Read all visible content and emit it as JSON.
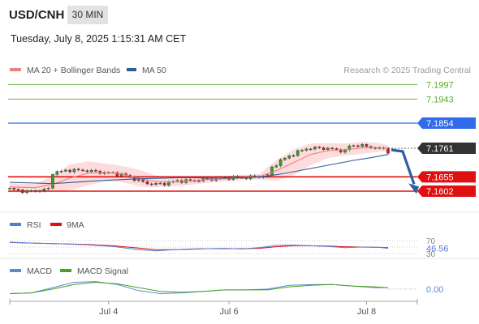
{
  "header": {
    "pair": "USD/CNH",
    "timeframe": "30 MIN",
    "datetime": "Tuesday, July 8, 2025 1:15:31 AM CET",
    "credit": "Research © 2025 Trading Central"
  },
  "colors": {
    "ma20": "#f08080",
    "ma50": "#2f5f99",
    "bands_fill": "#fcdcdc",
    "resistance": "#5aaa2a",
    "pivot": "#2f6bea",
    "support": "#e01010",
    "rsi": "#5b79d6",
    "rsi_ma": "#e01010",
    "macd": "#5b8ad6",
    "macd_signal": "#4aa020",
    "arrow": "#2a5fa8",
    "candle_up": "#2e9e2e",
    "candle_down": "#cc2222"
  },
  "chart_data": [
    {
      "type": "candlestick",
      "name": "price",
      "legend": [
        {
          "label": "MA 20 + Bollinger Bands",
          "color": "#f08080"
        },
        {
          "label": "MA 50",
          "color": "#2f5f99"
        }
      ],
      "last_price": 7.1761,
      "ylim": [
        7.159,
        7.201
      ],
      "levels": [
        {
          "label": "7.1997",
          "value": 7.1997,
          "kind": "resistance"
        },
        {
          "label": "7.1943",
          "value": 7.1943,
          "kind": "resistance"
        },
        {
          "label": "7.1854",
          "value": 7.1854,
          "kind": "pivot"
        },
        {
          "label": "7.1655",
          "value": 7.1655,
          "kind": "support"
        },
        {
          "label": "7.1602",
          "value": 7.1602,
          "kind": "support"
        }
      ],
      "forecast_arrow": {
        "from": 7.1755,
        "to": 7.1604
      },
      "close_path": [
        [
          0,
          7.161
        ],
        [
          4,
          7.16
        ],
        [
          9,
          7.161
        ],
        [
          10,
          7.167
        ],
        [
          14,
          7.168
        ],
        [
          18,
          7.1678
        ],
        [
          21,
          7.1672
        ],
        [
          24,
          7.1668
        ],
        [
          27,
          7.166
        ],
        [
          30,
          7.164
        ],
        [
          33,
          7.1628
        ],
        [
          36,
          7.163
        ],
        [
          39,
          7.164
        ],
        [
          42,
          7.164
        ],
        [
          45,
          7.1645
        ],
        [
          48,
          7.1648
        ],
        [
          51,
          7.1652
        ],
        [
          54,
          7.1652
        ],
        [
          57,
          7.1655
        ],
        [
          60,
          7.166
        ],
        [
          61,
          7.169
        ],
        [
          63,
          7.1715
        ],
        [
          66,
          7.174
        ],
        [
          69,
          7.176
        ],
        [
          72,
          7.1762
        ],
        [
          75,
          7.1758
        ],
        [
          78,
          7.175
        ],
        [
          79,
          7.177
        ],
        [
          81,
          7.1772
        ],
        [
          84,
          7.1765
        ],
        [
          86,
          7.176
        ],
        [
          87,
          7.176
        ],
        [
          88,
          7.1748
        ]
      ],
      "ma20": [
        [
          0,
          7.1618
        ],
        [
          6,
          7.1615
        ],
        [
          10,
          7.1628
        ],
        [
          14,
          7.165
        ],
        [
          18,
          7.1668
        ],
        [
          22,
          7.1672
        ],
        [
          26,
          7.1666
        ],
        [
          30,
          7.165
        ],
        [
          34,
          7.1638
        ],
        [
          38,
          7.1636
        ],
        [
          42,
          7.164
        ],
        [
          46,
          7.1645
        ],
        [
          50,
          7.1648
        ],
        [
          54,
          7.1652
        ],
        [
          58,
          7.1655
        ],
        [
          62,
          7.1678
        ],
        [
          66,
          7.1708
        ],
        [
          70,
          7.1738
        ],
        [
          74,
          7.1752
        ],
        [
          78,
          7.1756
        ],
        [
          82,
          7.1762
        ],
        [
          86,
          7.1764
        ],
        [
          88,
          7.176
        ]
      ],
      "ma50": [
        [
          0,
          7.1635
        ],
        [
          10,
          7.163
        ],
        [
          20,
          7.164
        ],
        [
          30,
          7.1648
        ],
        [
          40,
          7.1652
        ],
        [
          50,
          7.165
        ],
        [
          56,
          7.1652
        ],
        [
          60,
          7.1658
        ],
        [
          64,
          7.1668
        ],
        [
          68,
          7.168
        ],
        [
          72,
          7.1692
        ],
        [
          76,
          7.1704
        ],
        [
          80,
          7.1716
        ],
        [
          84,
          7.1726
        ],
        [
          88,
          7.1738
        ]
      ],
      "bb_upper": [
        [
          0,
          7.1632
        ],
        [
          6,
          7.1628
        ],
        [
          10,
          7.166
        ],
        [
          14,
          7.17
        ],
        [
          18,
          7.1712
        ],
        [
          22,
          7.1705
        ],
        [
          26,
          7.1696
        ],
        [
          30,
          7.1682
        ],
        [
          34,
          7.166
        ],
        [
          38,
          7.1652
        ],
        [
          42,
          7.1655
        ],
        [
          46,
          7.1657
        ],
        [
          50,
          7.1659
        ],
        [
          54,
          7.1661
        ],
        [
          58,
          7.1665
        ],
        [
          62,
          7.1716
        ],
        [
          66,
          7.1756
        ],
        [
          70,
          7.1778
        ],
        [
          74,
          7.178
        ],
        [
          78,
          7.1778
        ],
        [
          82,
          7.1784
        ],
        [
          86,
          7.178
        ],
        [
          88,
          7.1772
        ]
      ],
      "bb_lower": [
        [
          0,
          7.1598
        ],
        [
          6,
          7.1596
        ],
        [
          10,
          7.16
        ],
        [
          14,
          7.1606
        ],
        [
          18,
          7.1622
        ],
        [
          22,
          7.1638
        ],
        [
          26,
          7.1636
        ],
        [
          30,
          7.162
        ],
        [
          34,
          7.1616
        ],
        [
          38,
          7.162
        ],
        [
          42,
          7.1625
        ],
        [
          46,
          7.1633
        ],
        [
          50,
          7.1637
        ],
        [
          54,
          7.1643
        ],
        [
          58,
          7.1645
        ],
        [
          62,
          7.164
        ],
        [
          66,
          7.166
        ],
        [
          70,
          7.1698
        ],
        [
          74,
          7.1724
        ],
        [
          78,
          7.1734
        ],
        [
          82,
          7.174
        ],
        [
          86,
          7.1748
        ],
        [
          88,
          7.1748
        ]
      ]
    },
    {
      "type": "line",
      "name": "rsi",
      "legend": [
        {
          "label": "RSI",
          "color": "#5b79d6"
        },
        {
          "label": "9MA",
          "color": "#e01010"
        }
      ],
      "ylim": [
        30,
        70
      ],
      "tick_labels": [
        "70",
        "30"
      ],
      "last_value": 46.56,
      "last_label": "46.56",
      "rsi": [
        [
          0,
          65
        ],
        [
          6,
          62
        ],
        [
          12,
          60
        ],
        [
          18,
          57
        ],
        [
          24,
          52
        ],
        [
          30,
          42
        ],
        [
          34,
          38
        ],
        [
          38,
          42
        ],
        [
          42,
          44
        ],
        [
          46,
          45
        ],
        [
          50,
          46
        ],
        [
          54,
          44
        ],
        [
          58,
          48
        ],
        [
          62,
          55
        ],
        [
          66,
          56
        ],
        [
          70,
          54
        ],
        [
          74,
          52
        ],
        [
          78,
          48
        ],
        [
          82,
          50
        ],
        [
          86,
          49
        ],
        [
          88,
          46
        ]
      ],
      "ma9": [
        [
          0,
          64
        ],
        [
          6,
          62
        ],
        [
          12,
          60
        ],
        [
          18,
          58
        ],
        [
          24,
          54
        ],
        [
          30,
          47
        ],
        [
          34,
          42
        ],
        [
          38,
          42
        ],
        [
          42,
          43
        ],
        [
          46,
          45
        ],
        [
          50,
          45
        ],
        [
          54,
          45
        ],
        [
          58,
          46
        ],
        [
          62,
          51
        ],
        [
          66,
          54
        ],
        [
          70,
          54
        ],
        [
          74,
          53
        ],
        [
          78,
          51
        ],
        [
          82,
          50
        ],
        [
          86,
          49
        ],
        [
          88,
          48
        ]
      ]
    },
    {
      "type": "line",
      "name": "macd",
      "legend": [
        {
          "label": "MACD",
          "color": "#5b8ad6"
        },
        {
          "label": "MACD Signal",
          "color": "#4aa020"
        }
      ],
      "ylim": [
        -0.0014,
        0.0016
      ],
      "tick_labels": [
        "0.00"
      ],
      "zero_label": "0.00",
      "macd": [
        [
          0,
          -0.0006
        ],
        [
          5,
          -0.0005
        ],
        [
          10,
          0.0002
        ],
        [
          15,
          0.0009
        ],
        [
          20,
          0.001
        ],
        [
          25,
          0.0006
        ],
        [
          30,
          -0.0002
        ],
        [
          35,
          -0.0006
        ],
        [
          40,
          -0.0005
        ],
        [
          45,
          -0.0003
        ],
        [
          50,
          -0.0001
        ],
        [
          55,
          -0.0001
        ],
        [
          60,
          0.0
        ],
        [
          65,
          0.0005
        ],
        [
          70,
          0.0006
        ],
        [
          75,
          0.0006
        ],
        [
          80,
          0.0004
        ],
        [
          85,
          0.0002
        ],
        [
          88,
          0.0002
        ]
      ],
      "signal": [
        [
          0,
          -0.0006
        ],
        [
          5,
          -0.0005
        ],
        [
          10,
          0.0
        ],
        [
          15,
          0.0006
        ],
        [
          20,
          0.0009
        ],
        [
          25,
          0.0007
        ],
        [
          30,
          0.0002
        ],
        [
          35,
          -0.0003
        ],
        [
          40,
          -0.0004
        ],
        [
          45,
          -0.0003
        ],
        [
          50,
          -0.0001
        ],
        [
          55,
          -0.0001
        ],
        [
          60,
          -0.0001
        ],
        [
          65,
          0.0003
        ],
        [
          70,
          0.0005
        ],
        [
          75,
          0.0006
        ],
        [
          80,
          0.0004
        ],
        [
          85,
          0.0003
        ],
        [
          88,
          0.0002
        ]
      ]
    }
  ],
  "xaxis": {
    "range": [
      0,
      88
    ],
    "ticks": [
      {
        "label": "Jul 4",
        "index": 23
      },
      {
        "label": "Jul 6",
        "index": 51
      },
      {
        "label": "Jul 8",
        "index": 83
      }
    ]
  }
}
